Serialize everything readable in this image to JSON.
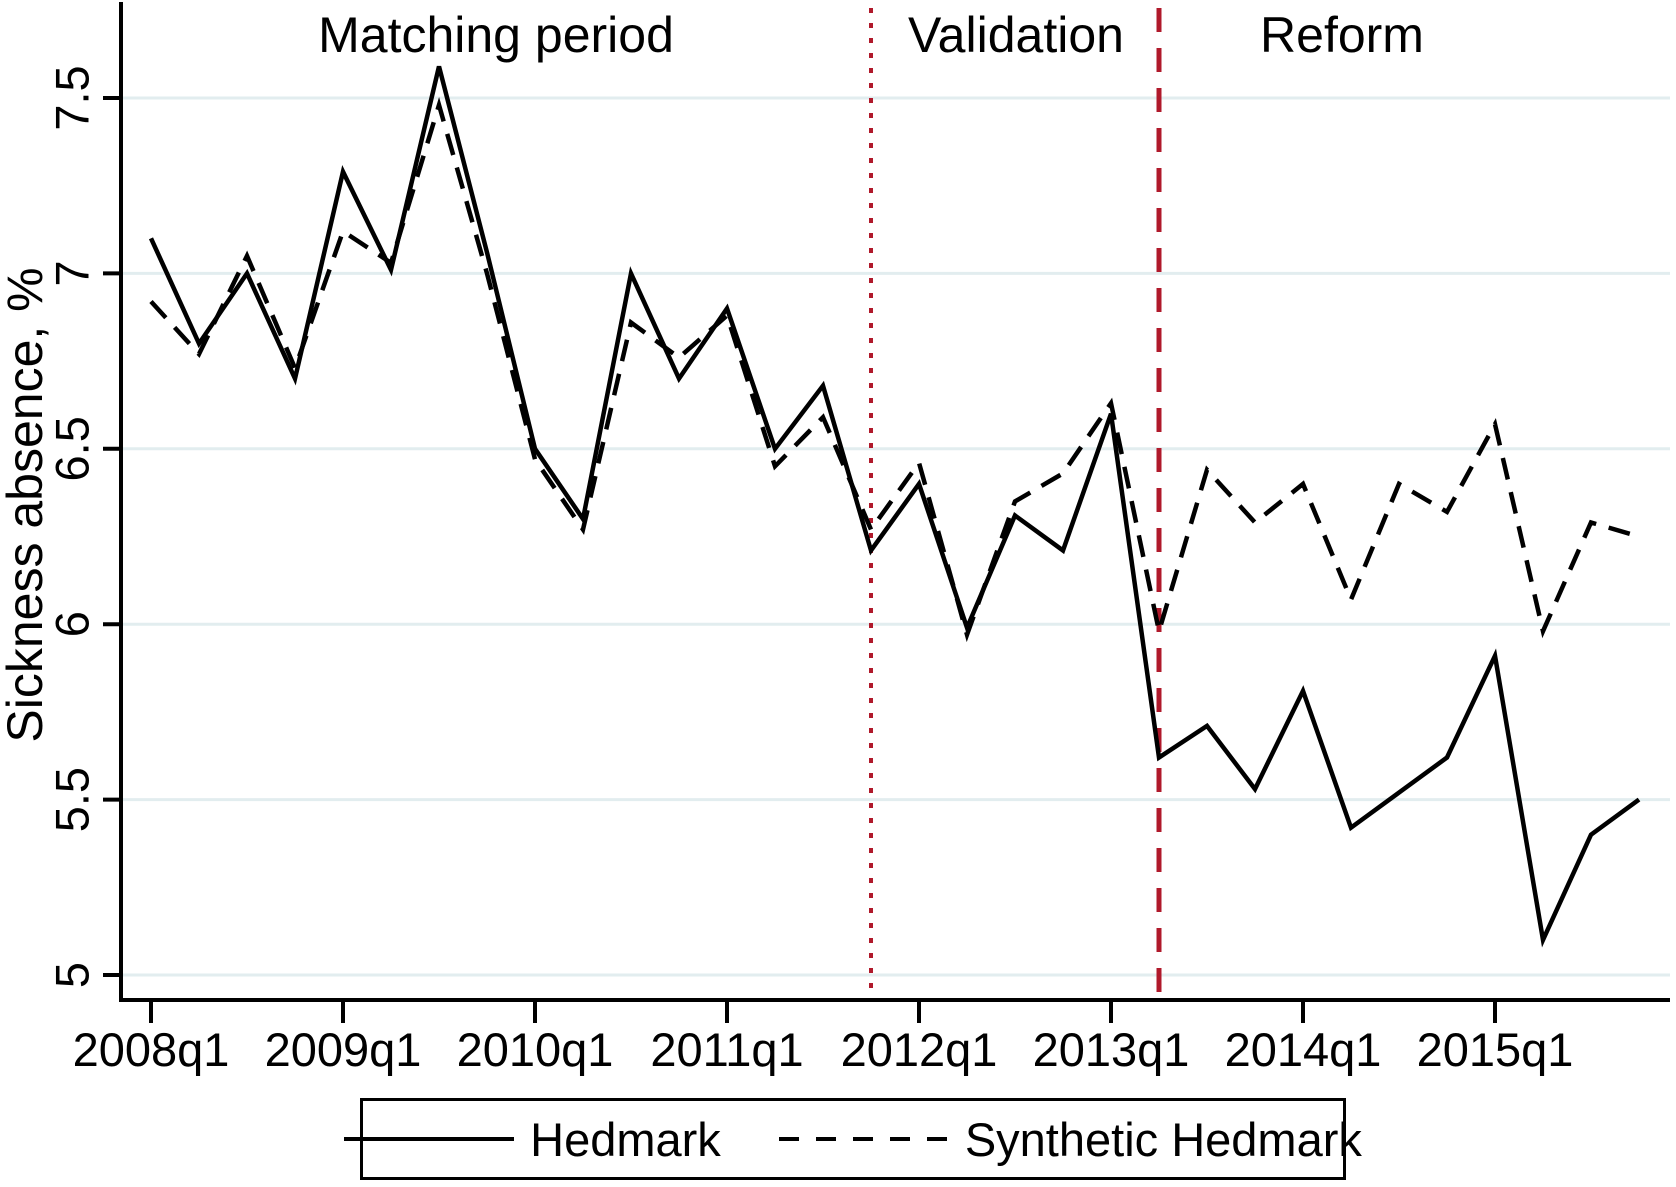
{
  "figure": {
    "y_axis_title": "Sickness absence, %",
    "period_labels": [
      "Matching period",
      "Validation",
      "Reform"
    ]
  },
  "legend": {
    "entries": [
      {
        "label": "Hedmark",
        "style": "solid"
      },
      {
        "label": "Synthetic Hedmark",
        "style": "dashed"
      }
    ]
  },
  "colors": {
    "reference_line": "#b0192b",
    "grid": "#e2edef",
    "series": "#000000",
    "background": "#ffffff"
  },
  "chart_data": {
    "type": "line",
    "title": "",
    "xlabel": "",
    "ylabel": "Sickness absence, %",
    "ylim": [
      4.93,
      7.78
    ],
    "grid": true,
    "legend_position": "bottom",
    "y_tick_values": [
      7.5,
      7,
      6.5,
      6,
      5.5,
      5
    ],
    "y_tick_labels": [
      "7.5",
      "7",
      "6.5",
      "6",
      "5.5",
      "5"
    ],
    "x_tick_labels": [
      "2008q1",
      "2009q1",
      "2010q1",
      "2011q1",
      "2012q1",
      "2013q1",
      "2014q1",
      "2015q1"
    ],
    "categories": [
      "2008q1",
      "2008q2",
      "2008q3",
      "2008q4",
      "2009q1",
      "2009q2",
      "2009q3",
      "2009q4",
      "2010q1",
      "2010q2",
      "2010q3",
      "2010q4",
      "2011q1",
      "2011q2",
      "2011q3",
      "2011q4",
      "2012q1",
      "2012q2",
      "2012q3",
      "2012q4",
      "2013q1",
      "2013q2",
      "2013q3",
      "2013q4",
      "2014q1",
      "2014q2",
      "2014q3",
      "2014q4",
      "2015q1",
      "2015q2",
      "2015q3",
      "2015q4"
    ],
    "series": [
      {
        "name": "Hedmark",
        "style": "solid",
        "values": [
          7.1,
          6.8,
          7.0,
          6.7,
          7.29,
          7.01,
          7.59,
          7.06,
          6.5,
          6.3,
          7.0,
          6.7,
          6.9,
          6.5,
          6.68,
          6.21,
          6.4,
          5.99,
          6.31,
          6.21,
          6.6,
          5.62,
          5.71,
          5.53,
          5.81,
          5.42,
          5.52,
          5.62,
          5.91,
          5.1,
          5.4,
          5.5
        ]
      },
      {
        "name": "Synthetic Hedmark",
        "style": "dashed",
        "values": [
          6.92,
          6.77,
          7.05,
          6.73,
          7.12,
          7.03,
          7.48,
          7.0,
          6.47,
          6.27,
          6.86,
          6.76,
          6.88,
          6.45,
          6.59,
          6.27,
          6.46,
          5.97,
          6.35,
          6.43,
          6.63,
          5.98,
          6.44,
          6.29,
          6.4,
          6.07,
          6.4,
          6.32,
          6.57,
          5.98,
          6.29,
          6.25
        ]
      }
    ],
    "vlines": [
      {
        "x_category": "2011q4",
        "style": "dotted",
        "color": "#b0192b",
        "meaning": "validation-period-start"
      },
      {
        "x_category": "2013q2",
        "style": "dashed",
        "color": "#b0192b",
        "meaning": "reform-period-start"
      }
    ],
    "annotations": [
      "Matching period",
      "Validation",
      "Reform"
    ]
  }
}
